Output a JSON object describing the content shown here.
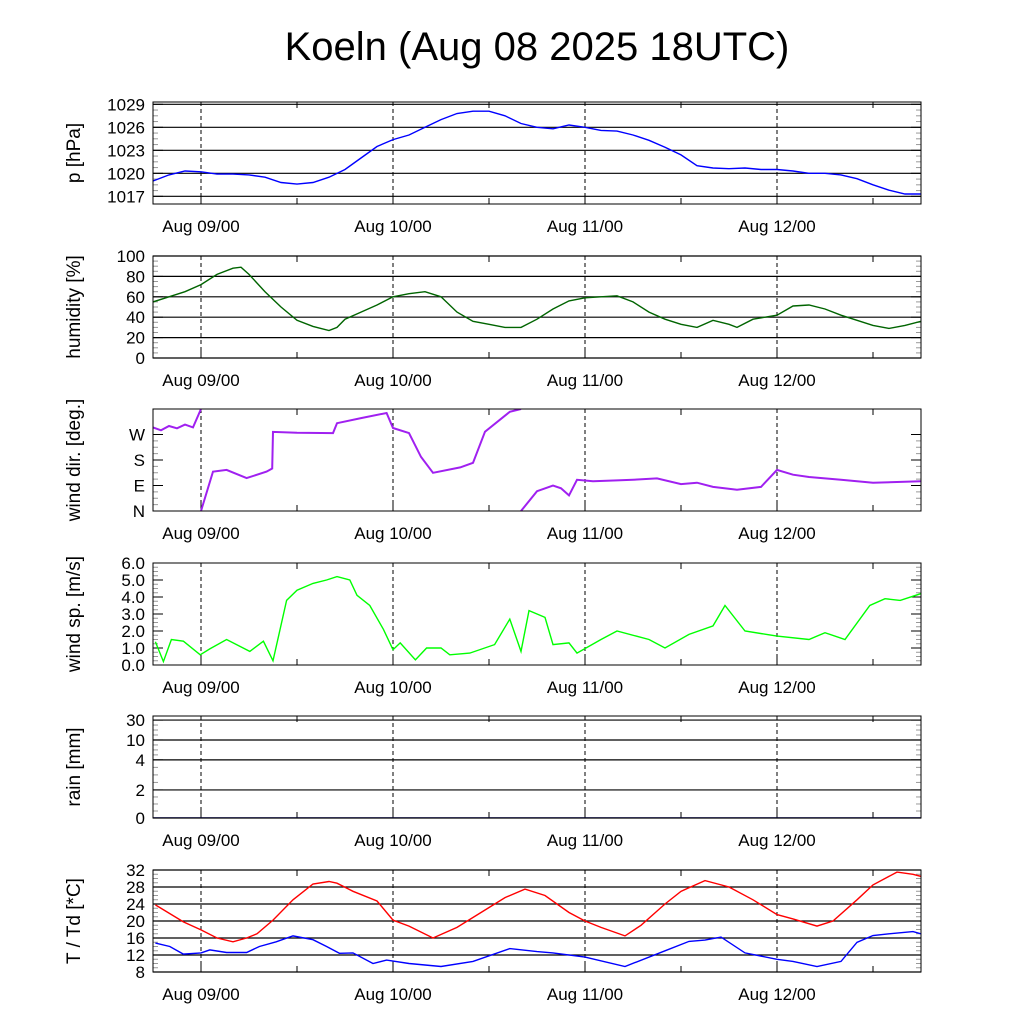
{
  "chart_data": {
    "type": "line",
    "title": "Koeln (Aug 08 2025 18UTC)",
    "x_unit": "hours since Aug 08 18UTC",
    "xlim": [
      0,
      96
    ],
    "x_tick_labels": [
      {
        "h": 6,
        "label": "Aug 09/00"
      },
      {
        "h": 30,
        "label": "Aug 10/00"
      },
      {
        "h": 54,
        "label": "Aug 11/00"
      },
      {
        "h": 78,
        "label": "Aug 12/00"
      }
    ],
    "panels": [
      {
        "id": "pressure",
        "ylabel": "p [hPa]",
        "ylim": [
          1016,
          1029.3
        ],
        "grid": true,
        "yticks": [
          {
            "v": 1017,
            "label": "1017"
          },
          {
            "v": 1020,
            "label": "1020"
          },
          {
            "v": 1023,
            "label": "1023"
          },
          {
            "v": 1026,
            "label": "1026"
          },
          {
            "v": 1029,
            "label": "1029"
          }
        ],
        "series": [
          {
            "name": "pressure",
            "color": "#0000ff",
            "x": [
              0,
              2,
              4,
              6,
              8,
              10,
              12,
              14,
              16,
              18,
              20,
              22,
              24,
              26,
              28,
              30,
              32,
              34,
              36,
              38,
              40,
              42,
              44,
              46,
              48,
              50,
              52,
              54,
              56,
              58,
              60,
              62,
              64,
              66,
              68,
              70,
              72,
              74,
              76,
              78,
              80,
              82,
              84,
              86,
              88,
              90,
              92,
              94,
              96
            ],
            "y": [
              1019.0,
              1019.8,
              1020.3,
              1020.2,
              1019.9,
              1019.9,
              1019.8,
              1019.5,
              1018.8,
              1018.6,
              1018.8,
              1019.5,
              1020.5,
              1022,
              1023.5,
              1024.4,
              1025,
              1026,
              1027,
              1027.8,
              1028.1,
              1028.1,
              1027.5,
              1026.5,
              1026.0,
              1025.8,
              1026.3,
              1026.0,
              1025.6,
              1025.5,
              1025,
              1024.3,
              1023.4,
              1022.4,
              1021.0,
              1020.7,
              1020.6,
              1020.7,
              1020.5,
              1020.5,
              1020.3,
              1020.0,
              1020.0,
              1019.8,
              1019.3,
              1018.5,
              1017.8,
              1017.3,
              1017.3
            ]
          }
        ]
      },
      {
        "id": "humidity",
        "ylabel": "humidity [%]",
        "ylim": [
          0,
          100
        ],
        "grid": true,
        "yticks": [
          {
            "v": 0,
            "label": "0"
          },
          {
            "v": 20,
            "label": "20"
          },
          {
            "v": 40,
            "label": "40"
          },
          {
            "v": 60,
            "label": "60"
          },
          {
            "v": 80,
            "label": "80"
          },
          {
            "v": 100,
            "label": "100"
          }
        ],
        "series": [
          {
            "name": "humidity",
            "color": "#006400",
            "x": [
              0,
              2,
              4,
              6,
              8,
              10,
              11,
              12,
              14,
              16,
              18,
              20,
              22,
              23,
              24,
              26,
              28,
              30,
              32,
              34,
              36,
              38,
              40,
              42,
              44,
              46,
              48,
              50,
              52,
              54,
              56,
              58,
              60,
              62,
              64,
              66,
              68,
              70,
              72,
              73,
              75,
              78,
              80,
              82,
              84,
              86,
              88,
              90,
              92,
              94,
              96
            ],
            "y": [
              55,
              60,
              65,
              72,
              82,
              88,
              89,
              82,
              65,
              50,
              37,
              31,
              27,
              30,
              38,
              45,
              52,
              60,
              63,
              65,
              60,
              45,
              36,
              33,
              30,
              30,
              38,
              48,
              56,
              59,
              60,
              61,
              55,
              45,
              38,
              33,
              30,
              37,
              33,
              30,
              38,
              42,
              51,
              52,
              48,
              42,
              37,
              32,
              29,
              32,
              36
            ]
          }
        ]
      },
      {
        "id": "wind_direction",
        "ylabel": "wind dir. [deg.]",
        "ylim": [
          0,
          360
        ],
        "grid": false,
        "yticks": [
          {
            "v": 0,
            "label": "N"
          },
          {
            "v": 90,
            "label": "E"
          },
          {
            "v": 180,
            "label": "S"
          },
          {
            "v": 270,
            "label": "W"
          }
        ],
        "series": [
          {
            "name": "wind direction",
            "color": "#a020f0",
            "x": [
              0,
              1,
              2,
              3,
              4,
              5,
              6,
              null,
              6,
              7.5,
              9.2,
              11.7,
              14.2,
              14.9,
              15,
              18,
              22.5,
              23,
              26,
              29.2,
              30,
              32,
              33.5,
              35,
              38.4,
              40,
              41.5,
              44.6,
              46,
              null,
              46,
              48,
              50,
              51,
              52,
              53,
              55,
              58,
              60,
              63,
              66,
              68,
              70,
              73,
              76,
              78,
              80,
              82,
              86,
              90,
              96
            ],
            "y": [
              295,
              285,
              300,
              292,
              305,
              295,
              360,
              null,
              0,
              139,
              145,
              116,
              139,
              150,
              279,
              276,
              275,
              310,
              328,
              346,
              293,
              275,
              191,
              135,
              154,
              170,
              280,
              350,
              360,
              null,
              0,
              70,
              90,
              80,
              55,
              110,
              105,
              108,
              110,
              115,
              95,
              100,
              85,
              75,
              85,
              145,
              128,
              120,
              110,
              100,
              105
            ]
          }
        ]
      },
      {
        "id": "wind_speed",
        "ylabel": "wind sp. [m/s]",
        "ylim": [
          0,
          6
        ],
        "grid": false,
        "yticks": [
          {
            "v": 0,
            "label": "0.0"
          },
          {
            "v": 1,
            "label": "1.0"
          },
          {
            "v": 2,
            "label": "2.0"
          },
          {
            "v": 3,
            "label": "3.0"
          },
          {
            "v": 4,
            "label": "4.0"
          },
          {
            "v": 5,
            "label": "5.0"
          },
          {
            "v": 6,
            "label": "6.0"
          }
        ],
        "series": [
          {
            "name": "wind speed",
            "color": "#00ff00",
            "x": [
              0.3,
              1.3,
              2.3,
              3.8,
              5.9,
              7.1,
              9.2,
              12.1,
              13.8,
              15.0,
              16.7,
              18.0,
              20.0,
              21.7,
              23,
              24.6,
              25.5,
              27.1,
              28.8,
              30,
              30.9,
              32.8,
              34.2,
              36,
              37.1,
              39.6,
              42.7,
              44.6,
              46,
              47,
              49,
              50,
              52,
              53,
              56,
              58,
              62,
              64,
              67,
              70,
              71.5,
              74,
              78,
              82,
              84,
              86.5,
              89.6,
              91.5,
              93.4,
              96
            ],
            "y": [
              1.37,
              0.2,
              1.5,
              1.4,
              0.6,
              0.95,
              1.5,
              0.8,
              1.4,
              0.25,
              3.8,
              4.4,
              4.8,
              5.0,
              5.2,
              5.0,
              4.1,
              3.5,
              2.1,
              0.9,
              1.3,
              0.3,
              1.0,
              1.0,
              0.6,
              0.7,
              1.2,
              2.7,
              0.8,
              3.2,
              2.8,
              1.2,
              1.3,
              0.7,
              1.5,
              2.0,
              1.5,
              1.0,
              1.8,
              2.3,
              3.5,
              2.0,
              1.7,
              1.5,
              1.9,
              1.5,
              3.5,
              3.9,
              3.8,
              4.2
            ]
          }
        ]
      },
      {
        "id": "rain",
        "ylabel": "rain [mm]",
        "ylim": [
          0,
          30
        ],
        "grid": true,
        "scale": "nonlinear",
        "yticks": [
          {
            "v": 0,
            "label": "0"
          },
          {
            "v": 2,
            "label": "2"
          },
          {
            "v": 4,
            "label": "4"
          },
          {
            "v": 10,
            "label": "10"
          },
          {
            "v": 30,
            "label": "30"
          }
        ],
        "series": [
          {
            "name": "rain",
            "color": "#00008b",
            "x": [
              0,
              96
            ],
            "y": [
              0,
              0
            ]
          }
        ]
      },
      {
        "id": "temperature",
        "ylabel": "T / Td [*C]",
        "ylim": [
          8,
          32
        ],
        "grid": true,
        "yticks": [
          {
            "v": 8,
            "label": "8"
          },
          {
            "v": 12,
            "label": "12"
          },
          {
            "v": 16,
            "label": "16"
          },
          {
            "v": 20,
            "label": "20"
          },
          {
            "v": 24,
            "label": "24"
          },
          {
            "v": 28,
            "label": "28"
          },
          {
            "v": 32,
            "label": "32"
          }
        ],
        "series": [
          {
            "name": "T",
            "color": "#ff0000",
            "x": [
              0.3,
              3.8,
              6,
              8,
              10,
              11.7,
              13,
              15,
              17.5,
              20,
              22,
              23,
              25,
              28,
              30,
              32,
              35,
              38,
              41,
              44,
              46.5,
              49,
              52,
              54,
              56,
              59,
              61,
              64,
              66,
              69,
              72,
              75,
              78,
              80,
              83,
              85,
              88,
              90,
              93,
              95,
              96
            ],
            "y": [
              23.8,
              19.8,
              17.9,
              16,
              15.1,
              16,
              17,
              20.2,
              25,
              28.7,
              29.3,
              28.9,
              27,
              24.7,
              20.2,
              18.8,
              16,
              18.5,
              22,
              25.5,
              27.5,
              26,
              22,
              20,
              18.5,
              16.5,
              19,
              24,
              27,
              29.5,
              28,
              25,
              21.5,
              20.5,
              18.8,
              20,
              25,
              28.5,
              31.5,
              31,
              30.5
            ]
          },
          {
            "name": "Td",
            "color": "#0000ff",
            "x": [
              0.3,
              2.1,
              3.8,
              6,
              7.1,
              9.2,
              11.7,
              13.3,
              15.4,
              17.5,
              20,
              21.7,
              23.3,
              25,
              27.5,
              29.2,
              32,
              36,
              40,
              44.6,
              48,
              50,
              54,
              59,
              64,
              67,
              69,
              71,
              74,
              78,
              80,
              83,
              86,
              88,
              90,
              92,
              95,
              96
            ],
            "y": [
              14.8,
              14.0,
              12.2,
              12.5,
              13.2,
              12.6,
              12.6,
              14,
              15.1,
              16.5,
              15.6,
              14,
              12.4,
              12.5,
              10,
              10.8,
              10,
              9.3,
              10.5,
              13.5,
              12.8,
              12.5,
              11.5,
              9.3,
              13,
              15.2,
              15.5,
              16.2,
              12.5,
              11,
              10.5,
              9.3,
              10.5,
              15,
              16.6,
              17,
              17.5,
              17
            ]
          }
        ]
      }
    ]
  }
}
